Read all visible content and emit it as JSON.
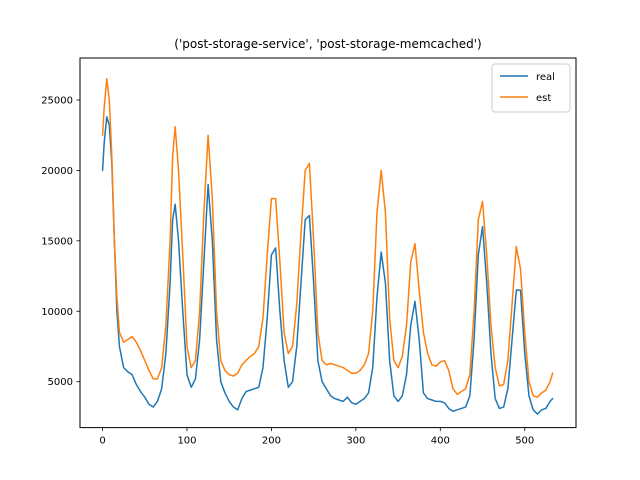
{
  "chart_data": {
    "type": "line",
    "title": "('post-storage-service', 'post-storage-memcached')",
    "xlabel": "",
    "ylabel": "",
    "xlim": [
      -26.7,
      560.7
    ],
    "ylim": [
      1740,
      27980
    ],
    "xticks": [
      0,
      100,
      200,
      300,
      400,
      500
    ],
    "yticks": [
      5000,
      10000,
      15000,
      20000,
      25000
    ],
    "grid": false,
    "legend_position": "top-right",
    "series": [
      {
        "name": "real",
        "color": "#1f77b4",
        "x": [
          0,
          2,
          5,
          8,
          11,
          14,
          17,
          20,
          25,
          30,
          35,
          40,
          45,
          50,
          55,
          60,
          65,
          70,
          75,
          80,
          83,
          86,
          90,
          95,
          100,
          105,
          110,
          115,
          120,
          125,
          130,
          135,
          140,
          145,
          150,
          155,
          160,
          165,
          170,
          175,
          180,
          185,
          190,
          195,
          200,
          205,
          210,
          215,
          220,
          225,
          230,
          235,
          240,
          245,
          250,
          255,
          260,
          265,
          270,
          275,
          280,
          285,
          290,
          295,
          300,
          305,
          310,
          315,
          320,
          325,
          330,
          335,
          340,
          345,
          350,
          355,
          360,
          365,
          370,
          375,
          380,
          385,
          390,
          395,
          400,
          405,
          410,
          415,
          420,
          425,
          430,
          435,
          440,
          445,
          450,
          455,
          460,
          465,
          470,
          475,
          480,
          485,
          490,
          495,
          500,
          505,
          510,
          515,
          520,
          525,
          530,
          533
        ],
        "values": [
          20000,
          22000,
          23800,
          23200,
          20500,
          15000,
          10000,
          7500,
          6000,
          5700,
          5500,
          4800,
          4300,
          3900,
          3400,
          3200,
          3600,
          4500,
          7000,
          12000,
          16500,
          17600,
          15000,
          10000,
          5500,
          4600,
          5200,
          8000,
          13500,
          19000,
          15000,
          8000,
          5000,
          4200,
          3600,
          3200,
          3000,
          3800,
          4300,
          4400,
          4500,
          4600,
          6000,
          9500,
          14000,
          14500,
          10000,
          6500,
          4600,
          5000,
          7500,
          12000,
          16500,
          16800,
          12000,
          6500,
          5000,
          4500,
          4000,
          3800,
          3700,
          3600,
          3900,
          3500,
          3400,
          3600,
          3800,
          4200,
          6000,
          11000,
          14200,
          12000,
          6500,
          4000,
          3600,
          4000,
          5500,
          9000,
          10700,
          8000,
          4200,
          3800,
          3700,
          3600,
          3600,
          3500,
          3100,
          2900,
          3000,
          3100,
          3200,
          4000,
          8000,
          14000,
          16000,
          12000,
          7000,
          3800,
          3100,
          3200,
          4500,
          8000,
          11500,
          11500,
          7000,
          4000,
          3000,
          2700,
          3000,
          3100,
          3600,
          3800
        ]
      },
      {
        "name": "est",
        "color": "#ff7f0e",
        "x": [
          0,
          2,
          5,
          8,
          11,
          14,
          17,
          20,
          25,
          30,
          35,
          40,
          45,
          50,
          55,
          60,
          65,
          70,
          75,
          80,
          83,
          86,
          90,
          95,
          100,
          105,
          110,
          115,
          120,
          125,
          130,
          135,
          140,
          145,
          150,
          155,
          160,
          165,
          170,
          175,
          180,
          185,
          190,
          195,
          200,
          205,
          210,
          215,
          220,
          225,
          230,
          235,
          240,
          245,
          250,
          255,
          260,
          265,
          270,
          275,
          280,
          285,
          290,
          295,
          300,
          305,
          310,
          315,
          320,
          325,
          330,
          335,
          340,
          345,
          350,
          355,
          360,
          365,
          370,
          375,
          380,
          385,
          390,
          395,
          400,
          405,
          410,
          415,
          420,
          425,
          430,
          435,
          440,
          445,
          450,
          455,
          460,
          465,
          470,
          475,
          480,
          485,
          490,
          495,
          500,
          505,
          510,
          515,
          520,
          525,
          530,
          533
        ],
        "values": [
          22500,
          24500,
          26500,
          25000,
          21000,
          15000,
          11000,
          8500,
          7800,
          8000,
          8200,
          7800,
          7200,
          6500,
          5800,
          5200,
          5200,
          6000,
          9000,
          15000,
          21000,
          23100,
          20000,
          14000,
          7500,
          6000,
          6500,
          10000,
          17000,
          22500,
          18000,
          10000,
          6500,
          5800,
          5500,
          5400,
          5600,
          6200,
          6500,
          6800,
          7000,
          7500,
          9500,
          14000,
          18000,
          18000,
          13500,
          8500,
          7000,
          7500,
          10500,
          15500,
          20000,
          20500,
          15000,
          8500,
          6500,
          6200,
          6300,
          6200,
          6100,
          6000,
          5800,
          5600,
          5600,
          5800,
          6200,
          7000,
          10000,
          17000,
          20000,
          17000,
          9500,
          6500,
          6000,
          6800,
          9000,
          13500,
          14800,
          11500,
          8500,
          7000,
          6200,
          6100,
          6400,
          6500,
          5800,
          4500,
          4100,
          4300,
          4500,
          5500,
          10000,
          16500,
          17800,
          14000,
          9000,
          6000,
          4700,
          4800,
          6500,
          10500,
          14600,
          13000,
          8500,
          5000,
          4000,
          3900,
          4200,
          4400,
          5000,
          5600
        ]
      }
    ]
  }
}
